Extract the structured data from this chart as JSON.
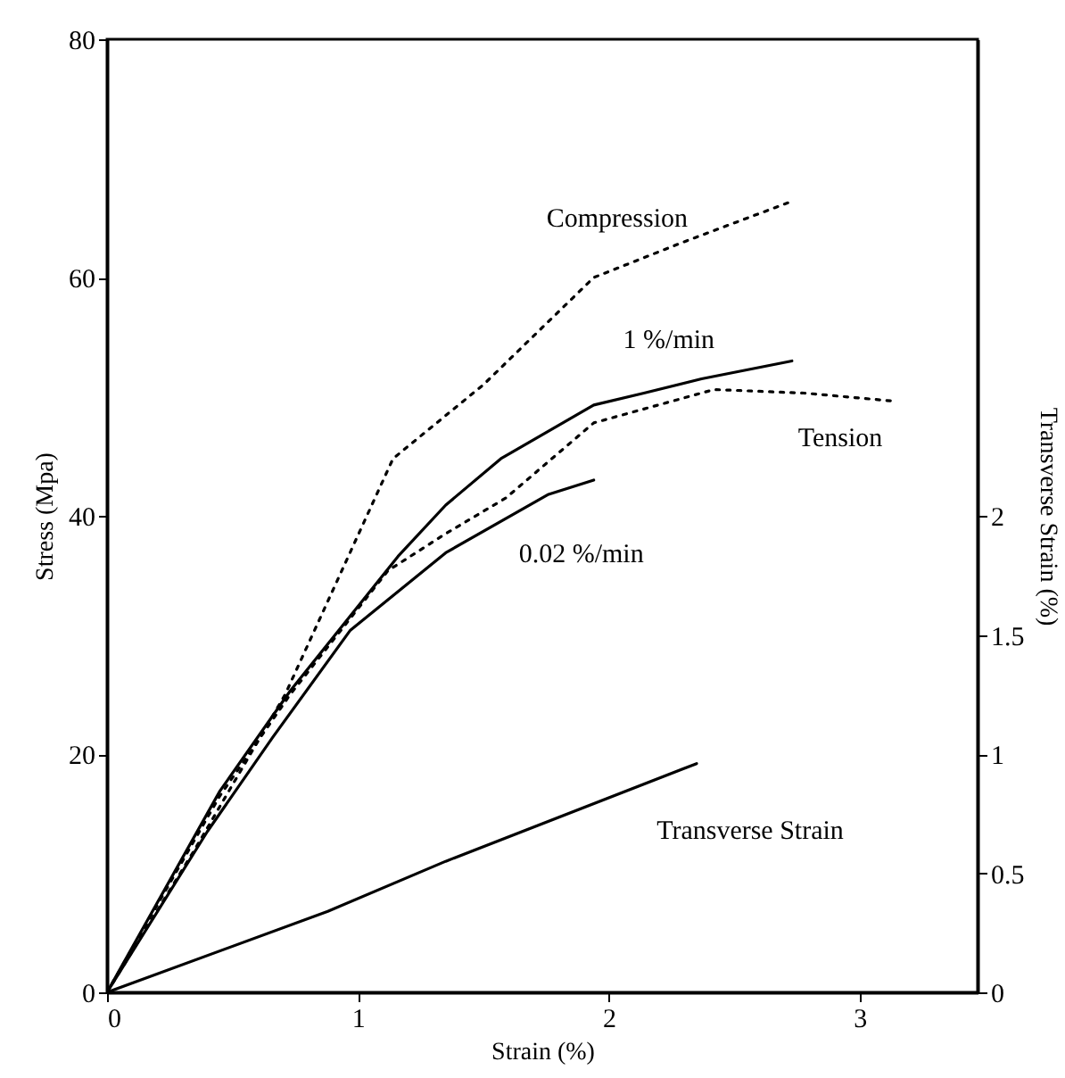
{
  "chart_data": {
    "type": "line",
    "xlabel": "Strain (%)",
    "ylabel": "Stress (Mpa)",
    "y2label": "Transverse Strain (%)",
    "xlim": [
      0,
      3.47
    ],
    "xticks": [
      0,
      1,
      2,
      3
    ],
    "ylim": [
      0,
      80
    ],
    "yticks": [
      0,
      20,
      40,
      60,
      80
    ],
    "y2lim": [
      0,
      4
    ],
    "y2ticks": [
      0,
      0.5,
      1,
      1.5,
      2
    ],
    "grid": false,
    "series": [
      {
        "name": "Compression",
        "color": "#000000",
        "line_style": "dotted",
        "x": [
          0,
          0.35,
          0.71,
          1.14,
          1.5,
          1.94,
          2.3,
          2.73
        ],
        "values": [
          0,
          12,
          25,
          44.8,
          51,
          60,
          63,
          66.4
        ]
      },
      {
        "name": "1 %/min",
        "color": "#000000",
        "line_style": "solid",
        "x": [
          0,
          0.45,
          0.73,
          1.16,
          1.35,
          1.57,
          1.94,
          2.14,
          2.37,
          2.73
        ],
        "values": [
          0,
          16.9,
          25.3,
          36.6,
          40.9,
          44.8,
          49.3,
          50.3,
          51.5,
          53
        ]
      },
      {
        "name": "Tension",
        "color": "#000000",
        "line_style": "dotted",
        "x": [
          0,
          0.45,
          0.73,
          1.12,
          1.35,
          1.59,
          1.94,
          2.42,
          2.78,
          3.15
        ],
        "values": [
          0,
          16.5,
          25,
          35.4,
          38.5,
          41.5,
          47.8,
          50.6,
          50.3,
          49.6
        ]
      },
      {
        "name": "0.02 %/min",
        "color": "#000000",
        "line_style": "solid",
        "x": [
          0,
          0.4,
          0.66,
          0.97,
          1.35,
          1.76,
          1.94
        ],
        "values": [
          0,
          13.5,
          21.4,
          30.4,
          36.9,
          41.8,
          43
        ]
      },
      {
        "name": "Transverse Strain",
        "color": "#000000",
        "line_style": "solid",
        "axis": "y2",
        "x": [
          0,
          0.88,
          1.35,
          2.35
        ],
        "values": [
          0,
          0.34,
          0.55,
          0.96
        ]
      }
    ]
  }
}
